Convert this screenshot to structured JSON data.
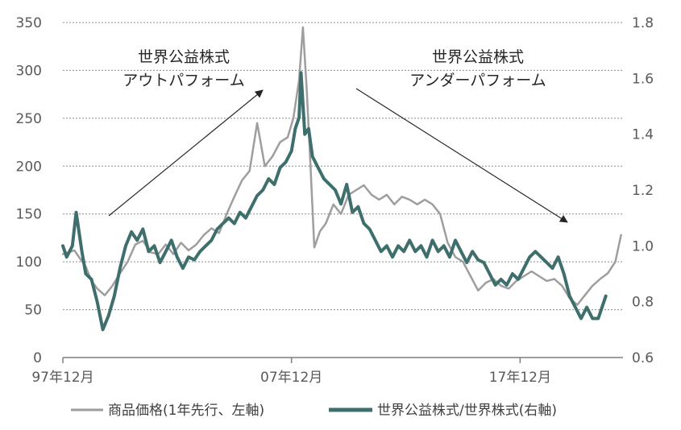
{
  "chart_data": {
    "type": "line",
    "x_tick_labels": [
      "97年12月",
      "07年12月",
      "17年12月"
    ],
    "y_left": {
      "min": 0,
      "max": 350,
      "ticks": [
        "0",
        "50",
        "100",
        "150",
        "200",
        "250",
        "300",
        "350"
      ]
    },
    "y_right": {
      "min": 0.6,
      "max": 1.8,
      "ticks": [
        "0.6",
        "0.8",
        "1.0",
        "1.2",
        "1.4",
        "1.6",
        "1.8"
      ]
    },
    "grid": "horizontal dashed",
    "legend_position": "bottom",
    "annotations": [
      {
        "lines": [
          "世界公益株式",
          "アウトパフォーム"
        ]
      },
      {
        "lines": [
          "世界公益株式",
          "アンダーパフォーム"
        ]
      }
    ],
    "series": [
      {
        "name": "商品価格(1年先行、左軸)",
        "axis": "left",
        "color": "#9e9e9e",
        "points": [
          [
            "1997-12",
            108
          ],
          [
            "1998-06",
            112
          ],
          [
            "1998-12",
            95
          ],
          [
            "1999-03",
            80
          ],
          [
            "1999-06",
            72
          ],
          [
            "1999-10",
            65
          ],
          [
            "2000-02",
            75
          ],
          [
            "2000-06",
            88
          ],
          [
            "2000-10",
            100
          ],
          [
            "2001-02",
            118
          ],
          [
            "2001-06",
            122
          ],
          [
            "2001-10",
            110
          ],
          [
            "2002-02",
            108
          ],
          [
            "2002-06",
            118
          ],
          [
            "2002-10",
            108
          ],
          [
            "2003-02",
            120
          ],
          [
            "2003-06",
            112
          ],
          [
            "2003-10",
            118
          ],
          [
            "2004-02",
            128
          ],
          [
            "2004-06",
            135
          ],
          [
            "2004-10",
            130
          ],
          [
            "2005-02",
            150
          ],
          [
            "2005-06",
            168
          ],
          [
            "2005-10",
            185
          ],
          [
            "2006-02",
            195
          ],
          [
            "2006-06",
            245
          ],
          [
            "2006-10",
            200
          ],
          [
            "2007-02",
            210
          ],
          [
            "2007-06",
            225
          ],
          [
            "2007-10",
            230
          ],
          [
            "2008-01",
            250
          ],
          [
            "2008-04",
            290
          ],
          [
            "2008-06",
            345
          ],
          [
            "2008-08",
            280
          ],
          [
            "2008-10",
            200
          ],
          [
            "2008-12",
            115
          ],
          [
            "2009-03",
            132
          ],
          [
            "2009-06",
            140
          ],
          [
            "2009-10",
            160
          ],
          [
            "2010-02",
            150
          ],
          [
            "2010-06",
            170
          ],
          [
            "2010-10",
            175
          ],
          [
            "2011-02",
            180
          ],
          [
            "2011-06",
            170
          ],
          [
            "2011-10",
            165
          ],
          [
            "2012-02",
            170
          ],
          [
            "2012-06",
            160
          ],
          [
            "2012-10",
            168
          ],
          [
            "2013-02",
            165
          ],
          [
            "2013-06",
            160
          ],
          [
            "2013-10",
            165
          ],
          [
            "2014-02",
            160
          ],
          [
            "2014-06",
            150
          ],
          [
            "2014-10",
            120
          ],
          [
            "2015-02",
            105
          ],
          [
            "2015-06",
            100
          ],
          [
            "2015-10",
            85
          ],
          [
            "2016-02",
            70
          ],
          [
            "2016-06",
            78
          ],
          [
            "2016-10",
            82
          ],
          [
            "2017-02",
            75
          ],
          [
            "2017-06",
            72
          ],
          [
            "2017-10",
            80
          ],
          [
            "2018-02",
            85
          ],
          [
            "2018-06",
            90
          ],
          [
            "2018-10",
            85
          ],
          [
            "2019-02",
            80
          ],
          [
            "2019-06",
            82
          ],
          [
            "2019-10",
            75
          ],
          [
            "2020-02",
            62
          ],
          [
            "2020-06",
            55
          ],
          [
            "2020-10",
            65
          ],
          [
            "2021-02",
            75
          ],
          [
            "2021-06",
            82
          ],
          [
            "2021-10",
            88
          ],
          [
            "2022-02",
            100
          ],
          [
            "2022-05",
            128
          ]
        ]
      },
      {
        "name": "世界公益株式/世界株式(右軸)",
        "axis": "right",
        "color": "#3e6f6d",
        "points": [
          [
            "1997-12",
            1.0
          ],
          [
            "1998-02",
            0.96
          ],
          [
            "1998-05",
            1.0
          ],
          [
            "1998-07",
            1.12
          ],
          [
            "1998-10",
            0.98
          ],
          [
            "1998-12",
            0.9
          ],
          [
            "1999-03",
            0.88
          ],
          [
            "1999-06",
            0.8
          ],
          [
            "1999-09",
            0.7
          ],
          [
            "1999-12",
            0.75
          ],
          [
            "2000-03",
            0.82
          ],
          [
            "2000-06",
            0.92
          ],
          [
            "2000-09",
            1.0
          ],
          [
            "2000-12",
            1.05
          ],
          [
            "2001-03",
            1.02
          ],
          [
            "2001-06",
            1.06
          ],
          [
            "2001-09",
            0.98
          ],
          [
            "2001-12",
            1.0
          ],
          [
            "2002-03",
            0.94
          ],
          [
            "2002-06",
            0.98
          ],
          [
            "2002-09",
            1.02
          ],
          [
            "2002-12",
            0.96
          ],
          [
            "2003-03",
            0.92
          ],
          [
            "2003-06",
            0.96
          ],
          [
            "2003-09",
            0.95
          ],
          [
            "2003-12",
            0.98
          ],
          [
            "2004-03",
            1.0
          ],
          [
            "2004-06",
            1.02
          ],
          [
            "2004-09",
            1.06
          ],
          [
            "2004-12",
            1.08
          ],
          [
            "2005-03",
            1.1
          ],
          [
            "2005-06",
            1.08
          ],
          [
            "2005-09",
            1.12
          ],
          [
            "2005-12",
            1.1
          ],
          [
            "2006-03",
            1.14
          ],
          [
            "2006-06",
            1.18
          ],
          [
            "2006-09",
            1.2
          ],
          [
            "2006-12",
            1.24
          ],
          [
            "2007-03",
            1.22
          ],
          [
            "2007-06",
            1.28
          ],
          [
            "2007-09",
            1.3
          ],
          [
            "2007-12",
            1.34
          ],
          [
            "2008-02",
            1.42
          ],
          [
            "2008-04",
            1.46
          ],
          [
            "2008-05",
            1.62
          ],
          [
            "2008-07",
            1.4
          ],
          [
            "2008-09",
            1.42
          ],
          [
            "2008-11",
            1.32
          ],
          [
            "2009-02",
            1.28
          ],
          [
            "2009-05",
            1.24
          ],
          [
            "2009-08",
            1.22
          ],
          [
            "2009-11",
            1.2
          ],
          [
            "2010-02",
            1.15
          ],
          [
            "2010-05",
            1.22
          ],
          [
            "2010-08",
            1.12
          ],
          [
            "2010-11",
            1.14
          ],
          [
            "2011-02",
            1.08
          ],
          [
            "2011-05",
            1.06
          ],
          [
            "2011-08",
            1.02
          ],
          [
            "2011-11",
            0.98
          ],
          [
            "2012-02",
            1.0
          ],
          [
            "2012-05",
            0.96
          ],
          [
            "2012-08",
            1.0
          ],
          [
            "2012-11",
            0.98
          ],
          [
            "2013-02",
            1.02
          ],
          [
            "2013-05",
            0.98
          ],
          [
            "2013-08",
            1.0
          ],
          [
            "2013-11",
            0.96
          ],
          [
            "2014-02",
            1.02
          ],
          [
            "2014-05",
            0.98
          ],
          [
            "2014-08",
            1.0
          ],
          [
            "2014-11",
            0.96
          ],
          [
            "2015-02",
            1.02
          ],
          [
            "2015-05",
            0.98
          ],
          [
            "2015-08",
            0.94
          ],
          [
            "2015-11",
            0.98
          ],
          [
            "2016-02",
            0.95
          ],
          [
            "2016-05",
            0.94
          ],
          [
            "2016-08",
            0.9
          ],
          [
            "2016-11",
            0.86
          ],
          [
            "2017-02",
            0.88
          ],
          [
            "2017-05",
            0.86
          ],
          [
            "2017-08",
            0.9
          ],
          [
            "2017-11",
            0.88
          ],
          [
            "2018-02",
            0.92
          ],
          [
            "2018-05",
            0.96
          ],
          [
            "2018-08",
            0.98
          ],
          [
            "2018-11",
            0.96
          ],
          [
            "2019-02",
            0.94
          ],
          [
            "2019-05",
            0.92
          ],
          [
            "2019-08",
            0.96
          ],
          [
            "2019-11",
            0.9
          ],
          [
            "2020-02",
            0.82
          ],
          [
            "2020-05",
            0.78
          ],
          [
            "2020-08",
            0.74
          ],
          [
            "2020-11",
            0.78
          ],
          [
            "2021-02",
            0.74
          ],
          [
            "2021-05",
            0.74
          ],
          [
            "2021-09",
            0.82
          ]
        ]
      }
    ]
  }
}
